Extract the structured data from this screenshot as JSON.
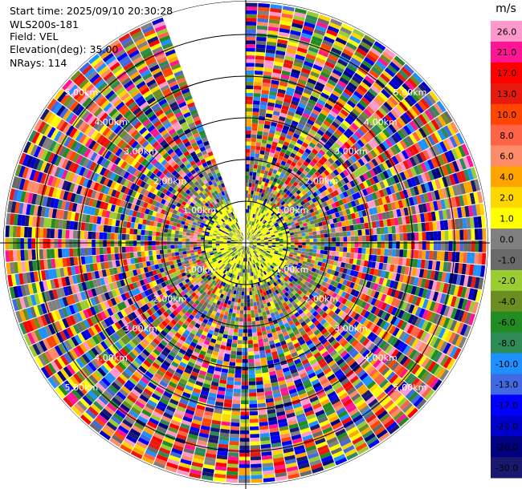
{
  "header": {
    "start_time": "Start time: 2025/09/10 20:30:28",
    "instrument": "WLS200s-181",
    "field": "Field: VEL",
    "elevation": "Elevation(deg): 35.00",
    "nrays": "NRays: 114"
  },
  "chart_data": {
    "type": "heatmap",
    "projection": "polar-ppi",
    "field": "VEL",
    "elevation_deg": 35.0,
    "n_rays": 114,
    "gap_sector_deg": [
      340,
      360
    ],
    "range_rings_km": [
      1,
      2,
      3,
      4,
      5
    ],
    "ring_labels": [
      "1.00km",
      "2.00km",
      "3.00km",
      "4.00km",
      "5.00km"
    ],
    "max_range_km": 5.8,
    "colorbar": {
      "unit": "m/s",
      "range": [
        -30,
        30
      ],
      "ticks": [
        "26.0",
        "21.0",
        "17.0",
        "13.0",
        "10.0",
        "8.0",
        "6.0",
        "4.0",
        "2.0",
        "1.0",
        "0.0",
        "-1.0",
        "-2.0",
        "-4.0",
        "-6.0",
        "-8.0",
        "-10.0",
        "-13.0",
        "-17.0",
        "-21.0",
        "-26.0",
        "-30.0"
      ],
      "colors": [
        "#FF99CC",
        "#FF1493",
        "#FF0000",
        "#E8190F",
        "#FF4500",
        "#FF6347",
        "#FF8C69",
        "#FFA500",
        "#FFD700",
        "#FFFF00",
        "#808080",
        "#696969",
        "#9ACD32",
        "#6B8E23",
        "#228B22",
        "#2E8B57",
        "#1E90FF",
        "#4169E1",
        "#0000FF",
        "#0000CD",
        "#000080",
        "#191970"
      ]
    },
    "legend": "right"
  }
}
